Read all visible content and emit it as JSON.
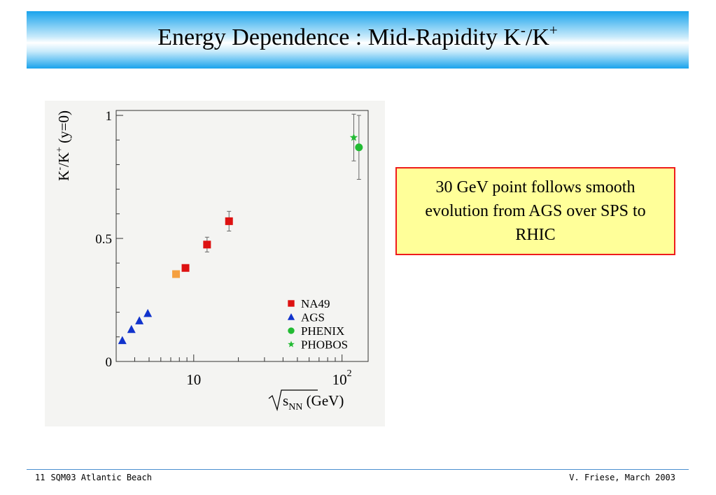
{
  "slide": {
    "title_main": "Energy Dependence : Mid-Rapidity K",
    "title_sup1": "-",
    "title_mid": "/K",
    "title_sup2": "+",
    "callout": "30 GeV point follows smooth evolution from AGS over SPS to RHIC",
    "footer": {
      "page_number": "11",
      "event": "SQM03 Atlantic Beach",
      "author_date": "V. Friese, March 2003"
    },
    "colors": {
      "title_band": "#19a3ec",
      "callout_border": "#ee1c1c",
      "callout_fill": "#ffff99",
      "footer_line": "#4a8fd0"
    }
  },
  "chart_data": {
    "type": "scatter",
    "x_scale": "log",
    "xlim": [
      3,
      150
    ],
    "ylim": [
      0,
      1.02
    ],
    "xticks": [
      {
        "value": 10,
        "base": "10",
        "exp": ""
      },
      {
        "value": 100,
        "base": "10",
        "exp": "2"
      }
    ],
    "yticks": [
      {
        "value": 0,
        "label": "0"
      },
      {
        "value": 0.5,
        "label": "0.5"
      },
      {
        "value": 1,
        "label": "1"
      }
    ],
    "xlabel": {
      "sqrt_arg": "s",
      "sub": "NN",
      "unit": " (GeV)"
    },
    "ylabel": {
      "k1": "K",
      "s1": "-",
      "mid": "/K",
      "s2": "+",
      "tail": " (y=0)"
    },
    "legend_placement": "bottom-right",
    "series": [
      {
        "name": "NA49",
        "marker": "square",
        "color": "#dd1111",
        "points": [
          {
            "x": 8.8,
            "y": 0.38
          },
          {
            "x": 12.3,
            "y": 0.475,
            "err": 0.03
          },
          {
            "x": 17.3,
            "y": 0.57,
            "err": 0.04
          }
        ]
      },
      {
        "name": "NA49 (30 GeV)",
        "marker": "square",
        "color": "#f5a040",
        "in_legend": false,
        "points": [
          {
            "x": 7.6,
            "y": 0.355
          }
        ]
      },
      {
        "name": "AGS",
        "marker": "triangle",
        "color": "#1133cc",
        "points": [
          {
            "x": 3.3,
            "y": 0.085
          },
          {
            "x": 3.8,
            "y": 0.13
          },
          {
            "x": 4.3,
            "y": 0.165
          },
          {
            "x": 4.9,
            "y": 0.195
          }
        ]
      },
      {
        "name": "PHENIX",
        "marker": "circle",
        "color": "#22bb33",
        "points": [
          {
            "x": 130,
            "y": 0.87,
            "err": 0.13
          }
        ]
      },
      {
        "name": "PHOBOS",
        "marker": "star",
        "color": "#22bb33",
        "points": [
          {
            "x": 120,
            "y": 0.91,
            "err": 0.095
          }
        ]
      }
    ]
  }
}
